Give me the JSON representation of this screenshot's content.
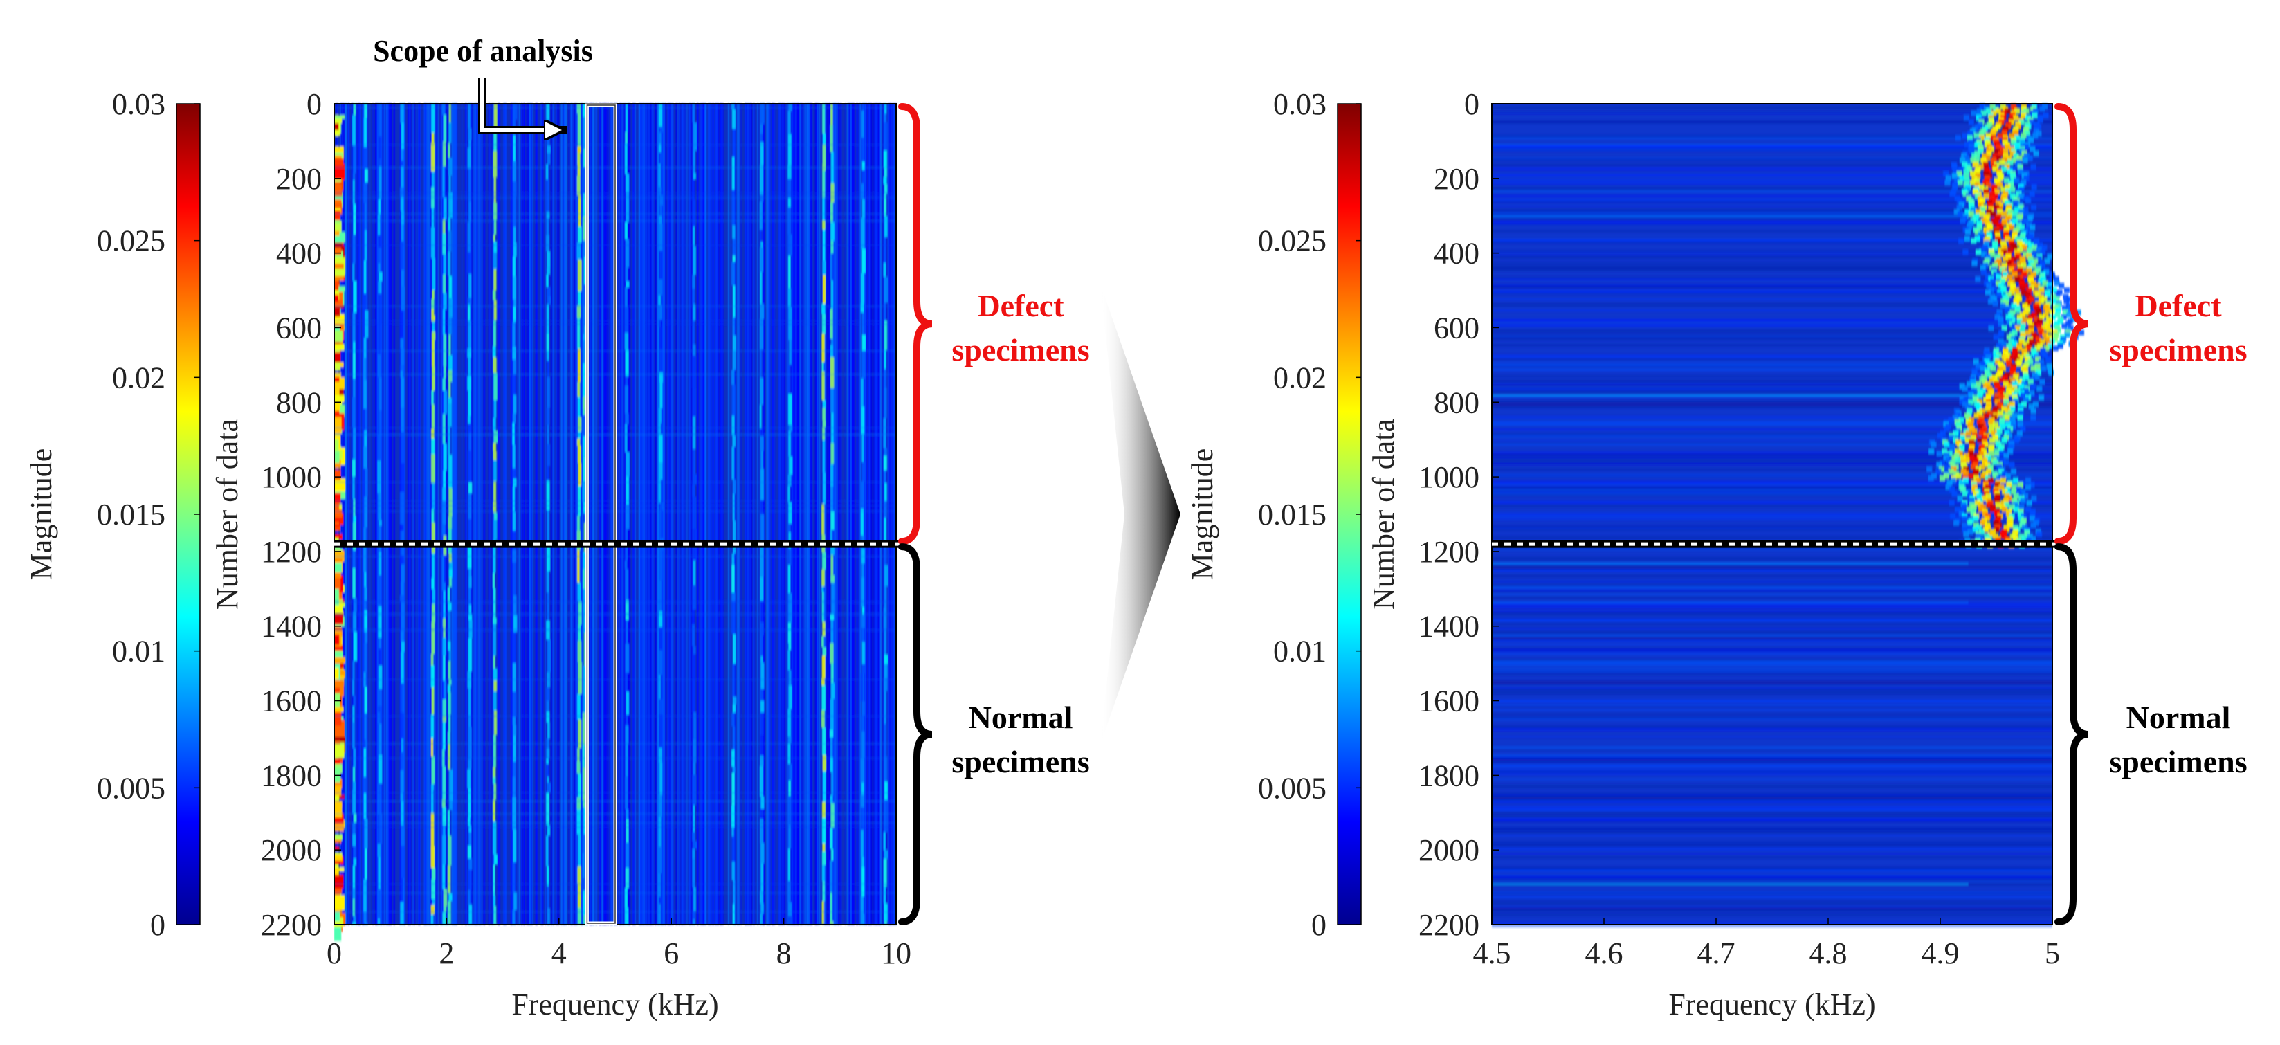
{
  "annotation": {
    "scope_label": "Scope of analysis"
  },
  "groups": {
    "defect": {
      "line1": "Defect",
      "line2": "specimens",
      "color": "#ee1111"
    },
    "normal": {
      "line1": "Normal",
      "line2": "specimens",
      "color": "#000000"
    }
  },
  "colorbar": {
    "label": "Magnitude",
    "min": 0,
    "max": 0.03,
    "ticks": [
      "0",
      "0.005",
      "0.01",
      "0.015",
      "0.02",
      "0.025",
      "0.03"
    ],
    "tick_values": [
      0,
      0.005,
      0.01,
      0.015,
      0.02,
      0.025,
      0.03
    ]
  },
  "chart_data": [
    {
      "type": "heatmap",
      "title": "",
      "xlabel": "Frequency (kHz)",
      "ylabel": "Number of data",
      "xlim": [
        0,
        10
      ],
      "ylim": [
        0,
        2200
      ],
      "x_ticks": [
        "0",
        "2",
        "4",
        "6",
        "8",
        "10"
      ],
      "x_tick_values": [
        0,
        2,
        4,
        6,
        8,
        10
      ],
      "y_ticks": [
        "0",
        "200",
        "400",
        "600",
        "800",
        "1000",
        "1200",
        "1400",
        "1600",
        "1800",
        "2000",
        "2200"
      ],
      "y_tick_values": [
        0,
        200,
        400,
        600,
        800,
        1000,
        1200,
        1400,
        1600,
        1800,
        2000,
        2200
      ],
      "separator_at": 1180,
      "defect_range": [
        0,
        1180
      ],
      "normal_range": [
        1180,
        2200
      ],
      "analysis_window_khz": [
        4.5,
        5.0
      ],
      "colormap": "jet",
      "zrange": [
        0,
        0.03
      ]
    },
    {
      "type": "heatmap",
      "title": "",
      "xlabel": "Frequency (kHz)",
      "ylabel": "Number of data",
      "xlim": [
        4.5,
        5
      ],
      "ylim": [
        0,
        2200
      ],
      "x_ticks": [
        "4.5",
        "4.6",
        "4.7",
        "4.8",
        "4.9",
        "5"
      ],
      "x_tick_values": [
        4.5,
        4.6,
        4.7,
        4.8,
        4.9,
        5.0
      ],
      "y_ticks": [
        "0",
        "200",
        "400",
        "600",
        "800",
        "1000",
        "1200",
        "1400",
        "1600",
        "1800",
        "2000",
        "2200"
      ],
      "y_tick_values": [
        0,
        200,
        400,
        600,
        800,
        1000,
        1200,
        1400,
        1600,
        1800,
        2000,
        2200
      ],
      "separator_at": 1180,
      "defect_range": [
        0,
        1180
      ],
      "normal_range": [
        1180,
        2200
      ],
      "colormap": "jet",
      "zrange": [
        0,
        0.03
      ]
    }
  ]
}
